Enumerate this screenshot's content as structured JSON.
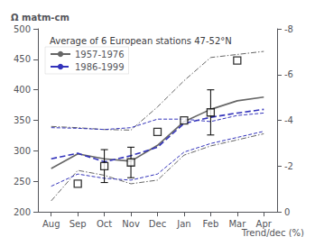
{
  "chart_data": {
    "type": "line",
    "title": "Average of 6 European stations 47-52°N",
    "ylabel": "Ω matm-cm",
    "y2label": "Trend/dec (%)",
    "categories": [
      "Aug",
      "Sep",
      "Oct",
      "Nov",
      "Dec",
      "Jan",
      "Feb",
      "Mar",
      "Apr"
    ],
    "series": [
      {
        "color": "#666666",
        "line_style": "dashdot",
        "values": [
          340,
          338,
          335,
          334,
          372,
          415,
          453,
          458,
          463
        ]
      },
      {
        "color": "#666666",
        "line_style": "dashdot",
        "values": [
          218,
          268,
          260,
          246,
          252,
          293,
          308,
          318,
          328
        ]
      },
      {
        "color": "#3333bb",
        "line_style": "dashed",
        "values": [
          338,
          337,
          335,
          338,
          352,
          352,
          348,
          358,
          362
        ]
      },
      {
        "color": "#3333bb",
        "line_style": "dashed",
        "values": [
          242,
          262,
          255,
          252,
          262,
          298,
          312,
          322,
          332
        ]
      },
      {
        "name": "1957-1976",
        "color": "#666666",
        "line_style": "solid",
        "values": [
          271,
          295,
          287,
          283,
          309,
          348,
          368,
          382,
          388
        ]
      },
      {
        "name": "1986-1999",
        "color": "#3333bb",
        "line_style": "dashed",
        "values": [
          287,
          296,
          282,
          292,
          306,
          345,
          355,
          362,
          368
        ]
      },
      {
        "type": "scatter",
        "marker": "square",
        "color": "#000000",
        "values": [
          null,
          246,
          275,
          281,
          331,
          350,
          363,
          448,
          null
        ],
        "error": [
          null,
          0,
          27,
          25,
          0,
          0,
          37,
          0,
          null
        ]
      }
    ],
    "ylim": [
      200,
      500
    ],
    "yticks": [
      200,
      250,
      300,
      350,
      400,
      450,
      500
    ],
    "y2lim": [
      0,
      -8
    ],
    "y2ticks": [
      0,
      -2,
      -4,
      -6,
      -8
    ],
    "grid": false,
    "legend": "upper left"
  }
}
